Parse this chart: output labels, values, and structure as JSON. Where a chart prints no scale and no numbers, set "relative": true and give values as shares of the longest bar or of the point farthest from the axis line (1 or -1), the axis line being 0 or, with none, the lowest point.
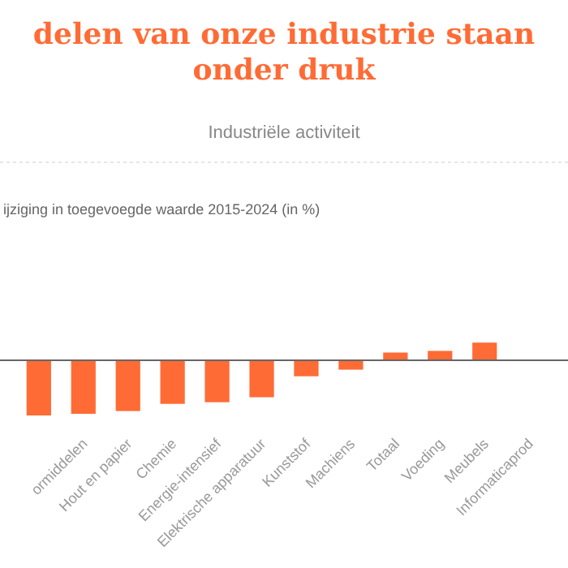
{
  "chart_data": {
    "type": "bar",
    "title": "delen van onze industrie staan onder druk",
    "subtitle": "Industriële activiteit",
    "annotations": [
      "ijziging in toegevoegde waarde 2015-2024 (in %)"
    ],
    "relative": true,
    "categories": [
      null,
      "ormiddelen",
      "Hout en papier",
      "Chemie",
      "Energie-intensief",
      "Elektrische apparatuur",
      "Kunststof",
      "Machiens",
      "Totaal",
      "Voeding",
      "Meubels",
      "Informaticaprod"
    ],
    "values": [
      -1,
      -0.97,
      -0.92,
      -0.79,
      -0.76,
      -0.67,
      -0.29,
      -0.17,
      0.14,
      0.17,
      0.32,
      null
    ],
    "color": "#ff6b35"
  }
}
